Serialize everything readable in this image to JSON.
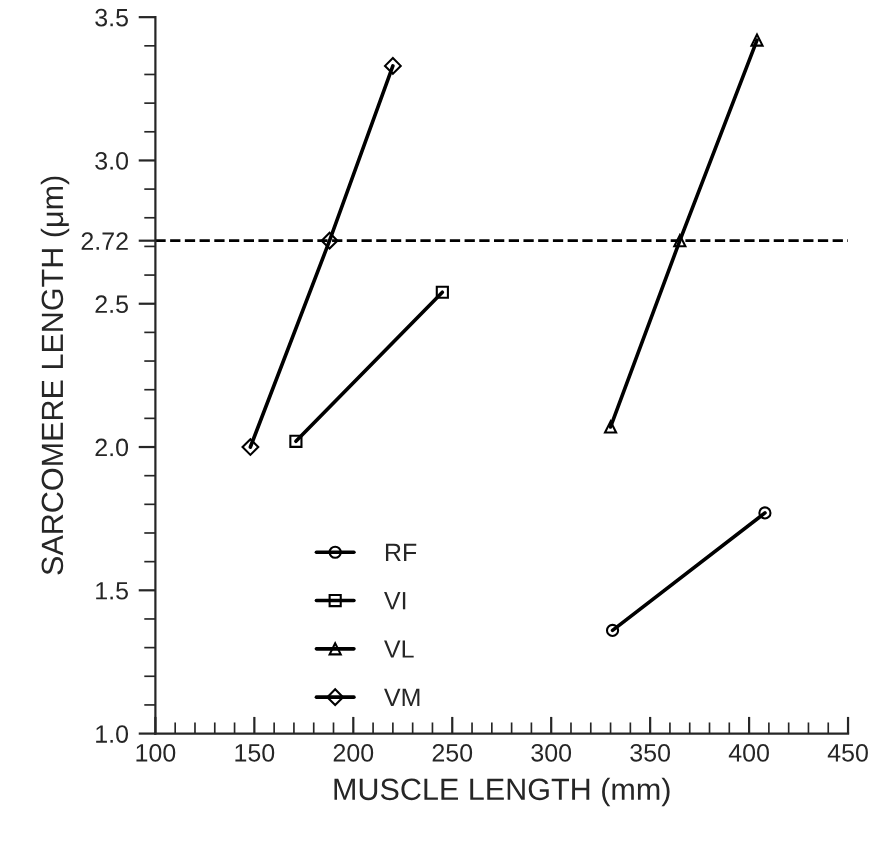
{
  "chart_data": {
    "type": "line",
    "xlabel": "MUSCLE LENGTH (mm)",
    "ylabel": "SARCOMERE LENGTH (μm)",
    "series": [
      {
        "name": "RF",
        "color": "#000000",
        "marker": "circle",
        "x": [
          331,
          408
        ],
        "values": [
          1.36,
          1.77
        ]
      },
      {
        "name": "VI",
        "color": "#000000",
        "marker": "square",
        "x": [
          171,
          245
        ],
        "values": [
          2.02,
          2.54
        ]
      },
      {
        "name": "VL",
        "color": "#000000",
        "marker": "triangle",
        "x": [
          330,
          365,
          404
        ],
        "values": [
          2.07,
          2.72,
          3.42
        ]
      },
      {
        "name": "VM",
        "color": "#000000",
        "marker": "diamond",
        "x": [
          148,
          188,
          220
        ],
        "values": [
          2.0,
          2.72,
          3.33
        ]
      }
    ],
    "xlim": [
      100,
      450
    ],
    "xticks": [
      100,
      150,
      200,
      250,
      300,
      350,
      400,
      450
    ],
    "ylim": [
      1.0,
      3.5
    ],
    "yticks": [
      {
        "value": 1.0,
        "label": "1.0"
      },
      1.5,
      {
        "value": 2.0,
        "label": "2.0"
      },
      2.5,
      2.72,
      {
        "value": 3.0,
        "label": "3.0"
      },
      3.5
    ],
    "ref_lines": [
      {
        "axis": "y",
        "value": 2.72,
        "line_style": "dashed",
        "color": "#000000"
      }
    ],
    "legend": "bottom left",
    "grid": false,
    "line_style": "solid"
  }
}
